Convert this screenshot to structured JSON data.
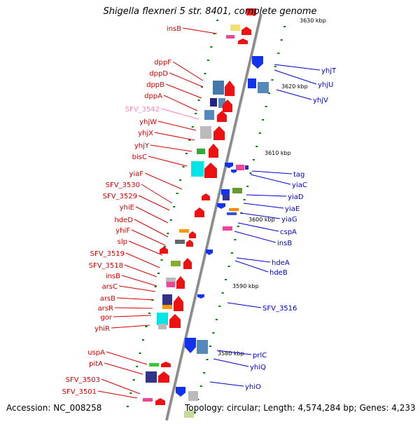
{
  "title": "Shigella flexneri 5 str. 8401, complete genome",
  "footer": {
    "accession": "Accession: NC_008258",
    "topology": "Topology: circular; Length: 4,574,284 bp; Genes: 4,233"
  },
  "colors": {
    "left_labels": "#d40000",
    "right_labels": "#0000cc",
    "pseudo_label": "#ff80c0",
    "axis": "#808080",
    "ticks": "#008000"
  },
  "scale_labels": [
    "3630 kbp",
    "3620 kbp",
    "3610 kbp",
    "3600 kbp",
    "3590 kbp",
    "3580 kbp"
  ],
  "left_genes": [
    "insB",
    "dppF",
    "dppD",
    "dppB",
    "dppA",
    "SFV_3542",
    "yhjW",
    "yhjX",
    "yhjY",
    "bisC",
    "yiaF",
    "SFV_3530",
    "SFV_3529",
    "yhiE",
    "hdeD",
    "yhiF",
    "slp",
    "SFV_3519",
    "SFV_3518",
    "insB",
    "arsC",
    "arsB",
    "arsR",
    "gor",
    "yhiR",
    "uspA",
    "pitA",
    "SFV_3503",
    "SFV_3501"
  ],
  "right_genes": [
    "yhjT",
    "yhjU",
    "yhjV",
    "tag",
    "yiaC",
    "yiaD",
    "yiaE",
    "yiaG",
    "cspA",
    "insB",
    "hdeA",
    "hdeB",
    "SFV_3516",
    "prlC",
    "yhiQ",
    "yhiO"
  ]
}
